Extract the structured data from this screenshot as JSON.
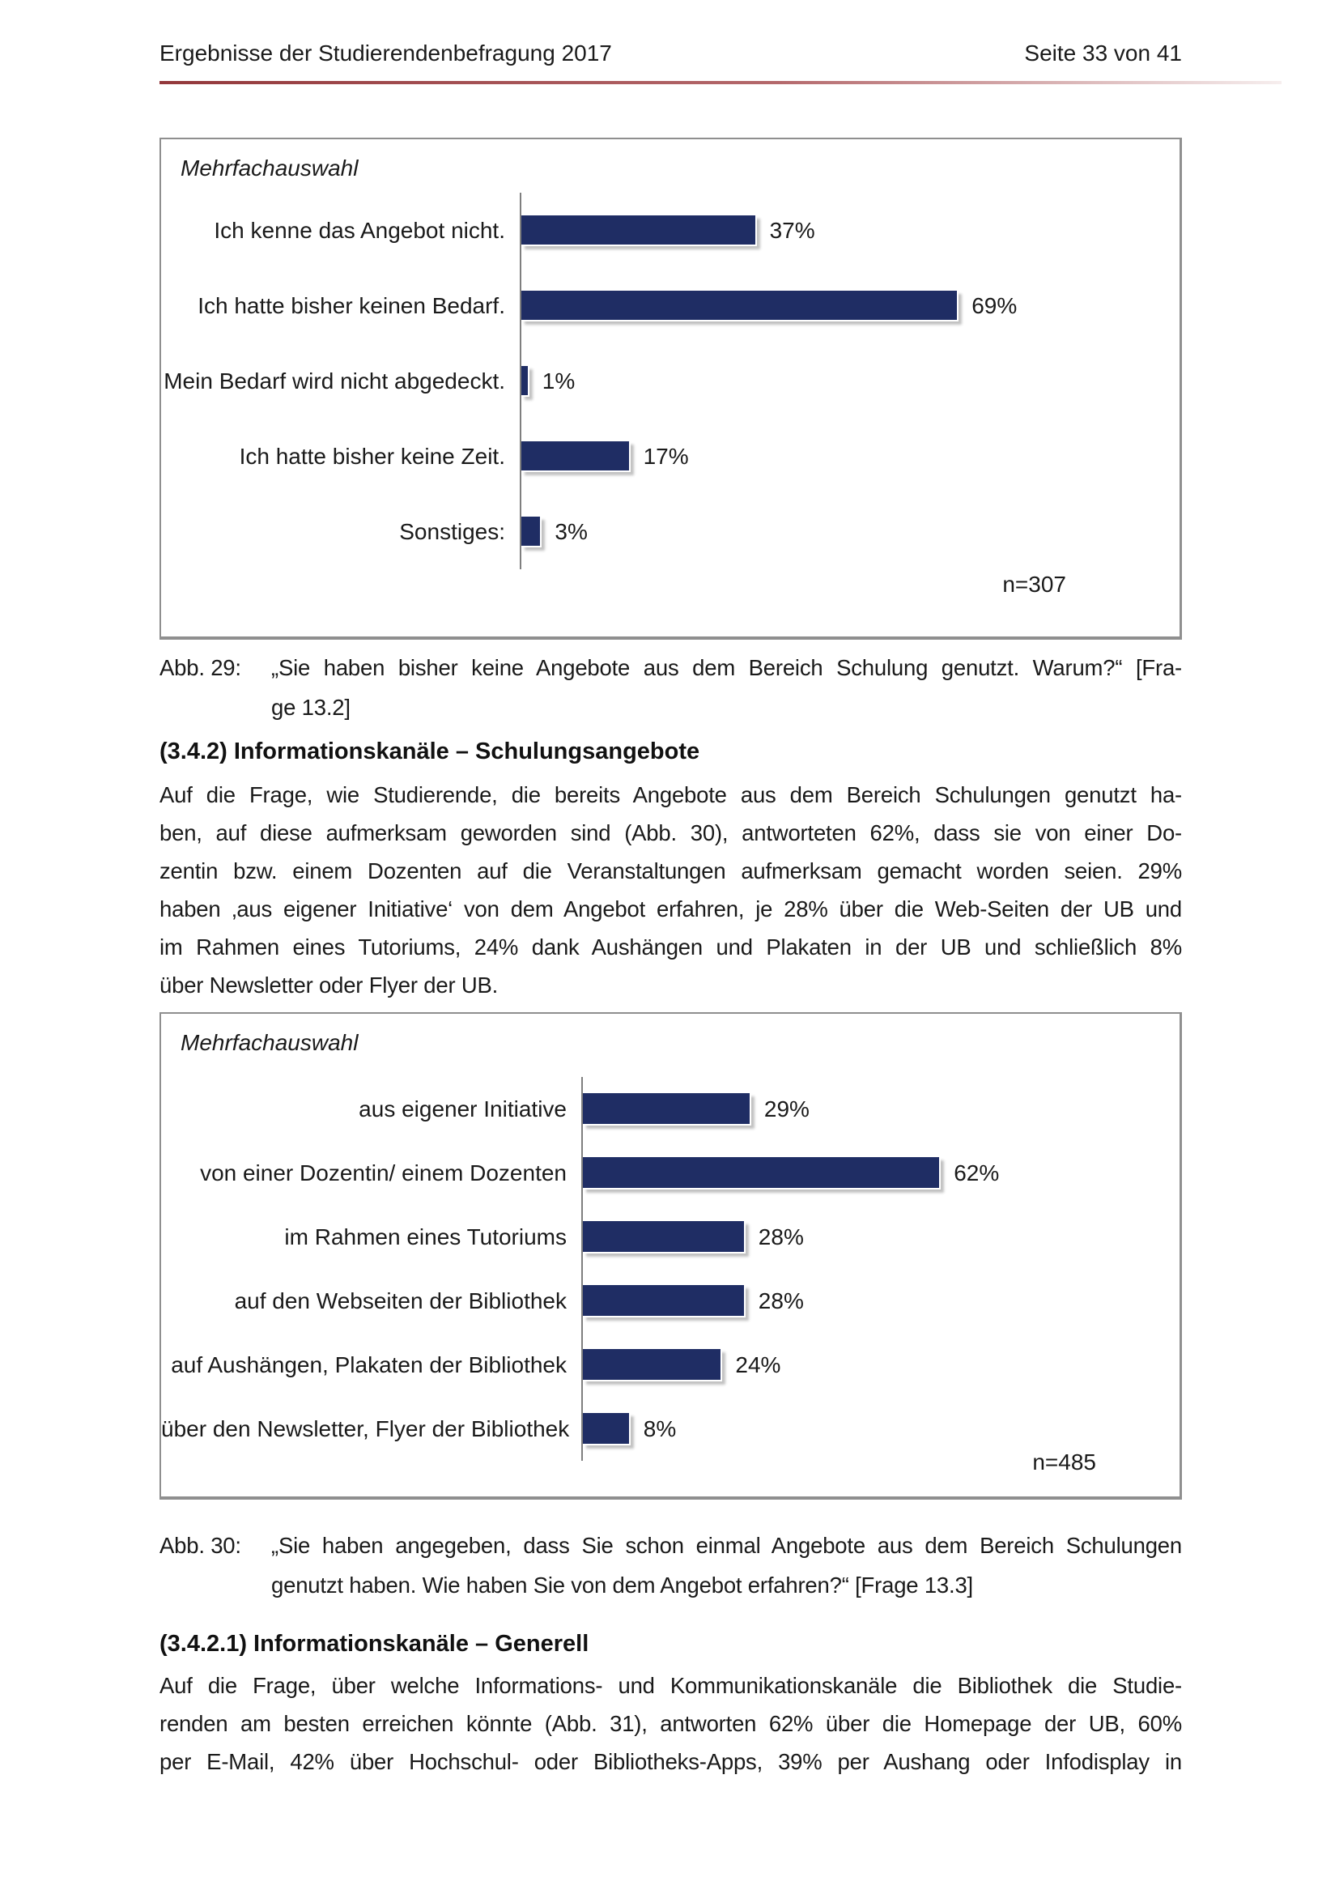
{
  "header": {
    "title": "Ergebnisse der Studierendenbefragung 2017",
    "page": "Seite 33 von 41"
  },
  "colors": {
    "bar": "#1f2d64",
    "axis": "#7f7f7f",
    "box_border": "#8f8f8f",
    "rule_left": "#93383b",
    "rule_mid": "#b4686b",
    "rule_right": "#f6eeee"
  },
  "chart_data": [
    {
      "type": "bar",
      "orientation": "horizontal",
      "note": "Mehrfachauswahl",
      "categories": [
        "Ich kenne das Angebot nicht.",
        "Ich hatte bisher keinen Bedarf.",
        "Mein Bedarf wird nicht abgedeckt.",
        "Ich hatte bisher keine Zeit.",
        "Sonstiges:"
      ],
      "values": [
        37,
        69,
        1,
        17,
        3
      ],
      "unit": "%",
      "n_label": "n=307",
      "xlim": [
        0,
        100
      ],
      "grid": false,
      "legend": "none",
      "value_labels_position": "end"
    },
    {
      "type": "bar",
      "orientation": "horizontal",
      "note": "Mehrfachauswahl",
      "categories": [
        "aus eigener Initiative",
        "von einer Dozentin/ einem Dozenten",
        "im Rahmen eines Tutoriums",
        "auf den Webseiten der Bibliothek",
        "auf Aushängen, Plakaten der Bibliothek",
        "über den Newsletter, Flyer der Bibliothek"
      ],
      "values": [
        29,
        62,
        28,
        28,
        24,
        8
      ],
      "unit": "%",
      "n_label": "n=485",
      "xlim": [
        0,
        100
      ],
      "grid": false,
      "legend": "none",
      "value_labels_position": "end"
    }
  ],
  "captions": {
    "abb29": {
      "label": "Abb. 29:",
      "lines": [
        "„Sie haben bisher keine Angebote aus dem Bereich Schulung genutzt. Warum?“ [Fra-",
        "ge 13.2]"
      ]
    },
    "abb30": {
      "label": "Abb. 30:",
      "lines": [
        "„Sie haben angegeben, dass Sie schon einmal Angebote aus dem Bereich Schulungen",
        "genutzt haben. Wie haben Sie von dem Angebot erfahren?“ [Frage 13.3]"
      ]
    }
  },
  "sections": {
    "s342": {
      "heading": "(3.4.2) Informationskanäle – Schulungsangebote",
      "lines": [
        "Auf die Frage, wie Studierende, die bereits Angebote aus dem Bereich Schulungen genutzt ha-",
        "ben, auf diese aufmerksam geworden sind (Abb. 30), antworteten 62%, dass sie von einer Do-",
        "zentin bzw. einem Dozenten auf die Veranstaltungen aufmerksam gemacht worden seien. 29%",
        "haben ‚aus eigener Initiative‘ von dem Angebot erfahren, je 28% über die Web-Seiten der UB und",
        "im Rahmen eines Tutoriums, 24% dank Aushängen und Plakaten in der UB und schließlich 8%",
        "über Newsletter oder Flyer der UB."
      ]
    },
    "s3421": {
      "heading": "(3.4.2.1) Informationskanäle – Generell",
      "lines": [
        "Auf die Frage, über welche Informations- und Kommunikationskanäle die Bibliothek die Studie-",
        "renden am besten erreichen könnte (Abb. 31), antworten 62% über die Homepage der UB, 60%",
        "per E-Mail, 42% über Hochschul- oder Bibliotheks-Apps, 39% per Aushang oder Infodisplay in"
      ]
    }
  }
}
